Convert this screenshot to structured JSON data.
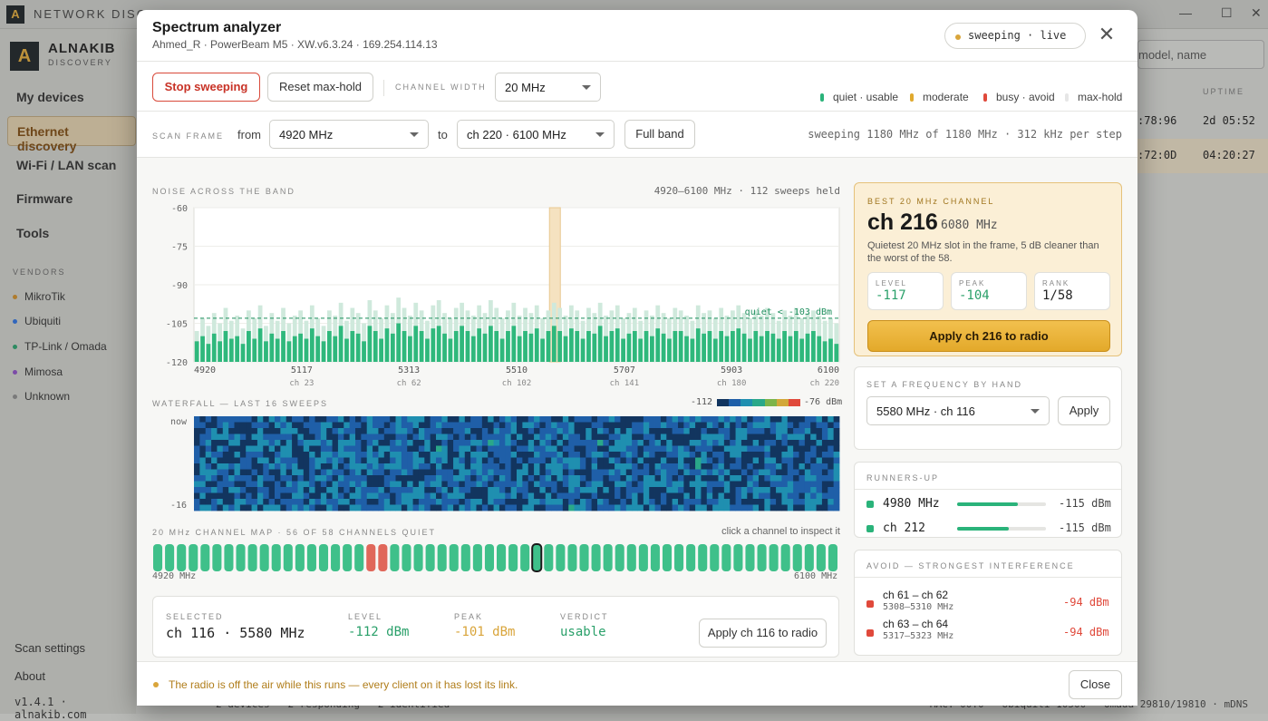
{
  "app": {
    "title": "NETWORK DISCOVERY",
    "brand": "ALNAKIB",
    "brand_sub": "DISCOVERY",
    "window_controls": [
      "—",
      "☐",
      "✕"
    ],
    "nav": [
      "My devices",
      "Ethernet discovery",
      "Wi-Fi / LAN scan",
      "Firmware",
      "Tools"
    ],
    "vendors_heading": "VENDORS",
    "vendors": [
      {
        "name": "MikroTik",
        "color": "#c98a2b"
      },
      {
        "name": "Ubiquiti",
        "color": "#2f6fd8"
      },
      {
        "name": "TP-Link / Omada",
        "color": "#2a9d6a"
      },
      {
        "name": "Mimosa",
        "color": "#8a4fbf"
      },
      {
        "name": "Unknown",
        "color": "#888888"
      }
    ],
    "scan_settings": "Scan settings",
    "about": "About",
    "version": "v1.4.1 · alnakib.com",
    "search_placeholder": "model, name",
    "uptime_heading": "UPTIME",
    "bg_rows": [
      {
        "mac": ":78:96",
        "uptime": "2d 05:52"
      },
      {
        "mac": ":72:0D",
        "uptime": "04:20:27"
      }
    ],
    "statusbar": "2 devices · 2 responding · 2 identified",
    "statusbar_right": "MAC: 00:0 · Ubiquiti 10500 · Omada 29810/19810 · mDNS"
  },
  "modal": {
    "title": "Spectrum analyzer",
    "subtitle": "Ahmed_R · PowerBeam M5 · XW.v6.3.24 · 169.254.114.13",
    "status_pill": "sweeping · live",
    "stop_button": "Stop sweeping",
    "reset_button": "Reset max-hold",
    "channel_width_label": "CHANNEL WIDTH",
    "channel_width": "20 MHz",
    "legend": [
      {
        "label": "quiet · usable",
        "color": "#2ab37a"
      },
      {
        "label": "moderate",
        "color": "#e0a92e"
      },
      {
        "label": "busy · avoid",
        "color": "#e0493b"
      },
      {
        "label": "max-hold",
        "color": "#e6e6e6"
      }
    ],
    "scan_frame_label": "SCAN FRAME",
    "from_label": "from",
    "from_value": "4920 MHz",
    "to_label": "to",
    "to_value": "ch 220 · 6100 MHz",
    "full_band_button": "Full band",
    "sweep_status": "sweeping 1180 MHz of 1180 MHz · 312 kHz per step",
    "noise_title": "NOISE ACROSS THE BAND",
    "noise_info": "4920–6100 MHz · 112 sweeps held",
    "quiet_line_label": "quiet < -103 dBm",
    "waterfall_title": "WATERFALL — LAST 16 SWEEPS",
    "waterfall_scale_min": "-112",
    "waterfall_scale_max": "-76 dBm",
    "waterfall_now": "now",
    "waterfall_old": "-16",
    "channel_map_title": "20 MHz CHANNEL MAP · 56 OF 58 CHANNELS QUIET",
    "channel_map_hint": "click a channel to inspect it",
    "map_left": "4920 MHz",
    "map_right": "6100 MHz",
    "selected_label": "SELECTED",
    "selected_value": "ch 116 · 5580 MHz",
    "level_label": "LEVEL",
    "level_value": "-112 dBm",
    "peak_label": "PEAK",
    "peak_value": "-101 dBm",
    "verdict_label": "VERDICT",
    "verdict_value": "usable",
    "apply_selected_button": "Apply ch 116 to radio",
    "best": {
      "heading": "BEST 20 MHz CHANNEL",
      "channel": "ch 216",
      "freq": "6080 MHz",
      "desc": "Quietest 20 MHz slot in the frame, 5 dB cleaner than the worst of the 58.",
      "level_label": "LEVEL",
      "level": "-117",
      "peak_label": "PEAK",
      "peak": "-104",
      "rank_label": "RANK",
      "rank": "1/58",
      "apply_button": "Apply ch 216 to radio"
    },
    "manual": {
      "heading": "SET A FREQUENCY BY HAND",
      "value": "5580 MHz · ch 116",
      "apply": "Apply"
    },
    "runners_heading": "RUNNERS-UP",
    "runners": [
      {
        "name": "4980 MHz",
        "value": "-115 dBm",
        "fill": 0.68
      },
      {
        "name": "ch 212",
        "value": "-115 dBm",
        "fill": 0.58
      }
    ],
    "avoid_heading": "AVOID — STRONGEST INTERFERENCE",
    "avoid": [
      {
        "name": "ch 61 – ch 62",
        "range": "5308–5310 MHz",
        "value": "-94 dBm"
      },
      {
        "name": "ch 63 – ch 64",
        "range": "5317–5323 MHz",
        "value": "-94 dBm"
      }
    ],
    "footer_warning": "The radio is off the air while this runs — every client on it has lost its link.",
    "close_button": "Close"
  },
  "chart_data": {
    "type": "bar",
    "title": "NOISE ACROSS THE BAND",
    "xlabel": "",
    "ylabel": "",
    "x_range": [
      4920,
      6100
    ],
    "ylim": [
      -120,
      -60
    ],
    "y_ticks": [
      -60,
      -75,
      -90,
      -105,
      -120
    ],
    "x_ticks": [
      {
        "mhz": 4920,
        "ch": ""
      },
      {
        "mhz": 5117,
        "ch": "ch 23"
      },
      {
        "mhz": 5313,
        "ch": "ch 62"
      },
      {
        "mhz": 5510,
        "ch": "ch 102"
      },
      {
        "mhz": 5707,
        "ch": "ch 141"
      },
      {
        "mhz": 5903,
        "ch": "ch 180"
      },
      {
        "mhz": 6100,
        "ch": "ch 220"
      }
    ],
    "quiet_threshold": -103,
    "highlight_mhz": 5580,
    "series": [
      {
        "name": "max-hold",
        "values": [
          -108,
          -103,
          -106,
          -101,
          -105,
          -99,
          -104,
          -102,
          -107,
          -100,
          -103,
          -98,
          -106,
          -101,
          -104,
          -99,
          -105,
          -102,
          -100,
          -104,
          -98,
          -103,
          -106,
          -100,
          -102,
          -97,
          -104,
          -99,
          -101,
          -105,
          -96,
          -100,
          -103,
          -98,
          -101,
          -95,
          -99,
          -102,
          -97,
          -100,
          -104,
          -98,
          -96,
          -101,
          -103,
          -99,
          -97,
          -100,
          -102,
          -98,
          -101,
          -96,
          -99,
          -103,
          -100,
          -97,
          -102,
          -99,
          -101,
          -98,
          -103,
          -100,
          -97,
          -99,
          -102,
          -98,
          -100,
          -104,
          -99,
          -101,
          -97,
          -102,
          -100,
          -98,
          -103,
          -101,
          -99,
          -104,
          -100,
          -102,
          -98,
          -101,
          -103,
          -99,
          -100,
          -102,
          -104,
          -98,
          -101,
          -100,
          -103,
          -99,
          -102,
          -100,
          -98,
          -101,
          -103,
          -100,
          -102,
          -99,
          -101,
          -104,
          -100,
          -102,
          -99,
          -103,
          -101,
          -100,
          -102,
          -104,
          -103,
          -105
        ]
      },
      {
        "name": "noise",
        "values": [
          -112,
          -110,
          -113,
          -109,
          -112,
          -108,
          -111,
          -110,
          -113,
          -108,
          -111,
          -107,
          -112,
          -109,
          -111,
          -108,
          -112,
          -110,
          -109,
          -111,
          -107,
          -110,
          -112,
          -108,
          -110,
          -106,
          -111,
          -108,
          -109,
          -112,
          -106,
          -108,
          -111,
          -107,
          -109,
          -105,
          -108,
          -110,
          -106,
          -108,
          -111,
          -107,
          -106,
          -109,
          -111,
          -108,
          -106,
          -108,
          -110,
          -107,
          -109,
          -106,
          -108,
          -111,
          -108,
          -106,
          -110,
          -108,
          -109,
          -107,
          -111,
          -108,
          -106,
          -108,
          -110,
          -107,
          -108,
          -111,
          -108,
          -109,
          -106,
          -110,
          -108,
          -107,
          -111,
          -109,
          -108,
          -111,
          -108,
          -110,
          -107,
          -109,
          -111,
          -108,
          -108,
          -110,
          -111,
          -107,
          -109,
          -108,
          -111,
          -108,
          -110,
          -108,
          -107,
          -109,
          -111,
          -108,
          -110,
          -108,
          -109,
          -111,
          -108,
          -110,
          -108,
          -111,
          -109,
          -108,
          -110,
          -112,
          -111,
          -113
        ]
      }
    ],
    "waterfall": {
      "rows": 16,
      "cols": 112,
      "min": -112,
      "max": -76,
      "colors": [
        "#12355f",
        "#1f5fa8",
        "#1f8fb0",
        "#2aa889",
        "#7db44a",
        "#d2a83a",
        "#e0493b"
      ]
    },
    "channel_map": {
      "count": 58,
      "busy": [
        18,
        19
      ],
      "selected": 32,
      "colors": {
        "quiet": "#3fc08a",
        "busy": "#e0675a"
      }
    }
  }
}
